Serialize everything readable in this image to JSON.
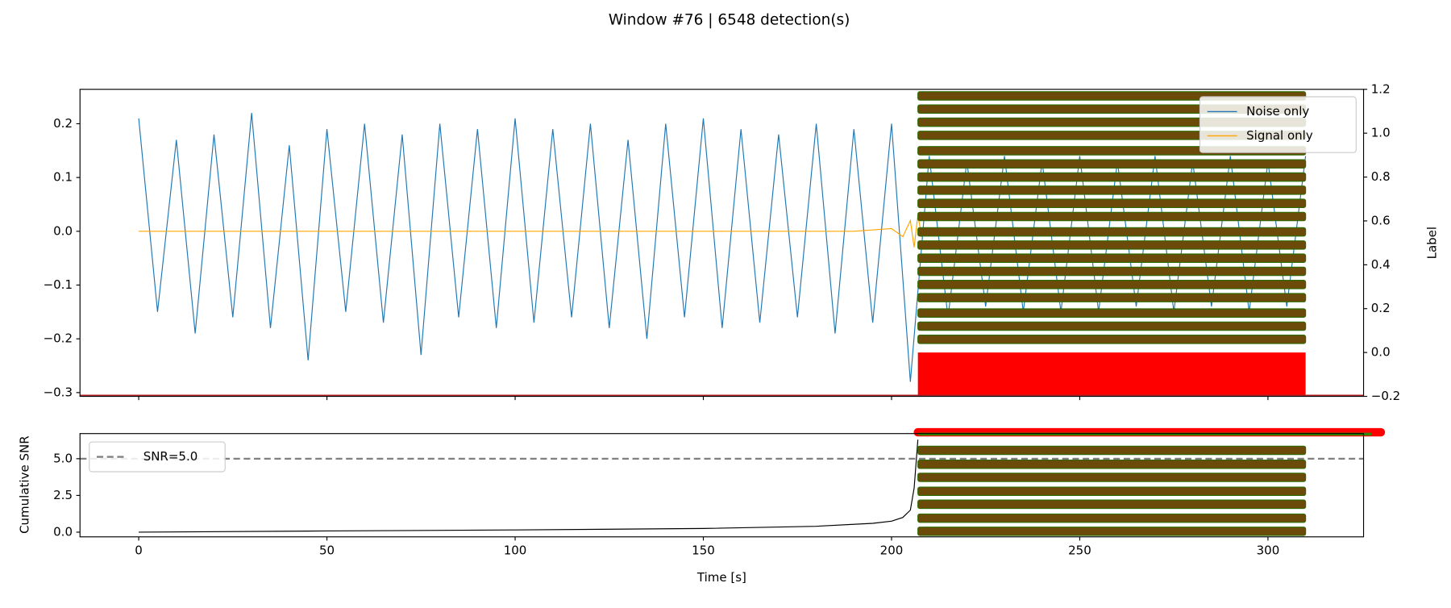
{
  "chart_data": [
    {
      "type": "line",
      "title": "Window #76 | 6548 detection(s)",
      "y2_label": "Label",
      "legend": "upper right",
      "x": [
        0,
        5,
        10,
        15,
        20,
        25,
        30,
        35,
        40,
        45,
        50,
        55,
        60,
        65,
        70,
        75,
        80,
        85,
        90,
        95,
        100,
        105,
        110,
        115,
        120,
        125,
        130,
        135,
        140,
        145,
        150,
        155,
        160,
        165,
        170,
        175,
        180,
        185,
        190,
        195,
        200,
        205,
        210,
        215,
        220,
        225,
        230,
        235,
        240,
        245,
        250,
        255,
        260,
        265,
        270,
        275,
        280,
        285,
        290,
        295,
        300,
        305,
        310
      ],
      "series": [
        {
          "name": "Noise only",
          "color": "#1f77b4",
          "values": [
            0.21,
            -0.15,
            0.17,
            -0.19,
            0.18,
            -0.16,
            0.22,
            -0.18,
            0.16,
            -0.24,
            0.19,
            -0.15,
            0.2,
            -0.17,
            0.18,
            -0.23,
            0.2,
            -0.16,
            0.19,
            -0.18,
            0.21,
            -0.17,
            0.19,
            -0.16,
            0.2,
            -0.18,
            0.17,
            -0.2,
            0.2,
            -0.16,
            0.21,
            -0.18,
            0.19,
            -0.17,
            0.18,
            -0.16,
            0.2,
            -0.19,
            0.19,
            -0.17,
            0.2,
            -0.28,
            0.14,
            -0.16,
            0.13,
            -0.14,
            0.14,
            -0.15,
            0.13,
            -0.15,
            0.14,
            -0.15,
            0.13,
            -0.14,
            0.14,
            -0.15,
            0.13,
            -0.14,
            0.14,
            -0.15,
            0.13,
            -0.14,
            0.14
          ]
        },
        {
          "name": "Signal only",
          "color": "#ffa500",
          "x": [
            0,
            100,
            190,
            200,
            203,
            205,
            206,
            207,
            208,
            210
          ],
          "values": [
            0,
            0,
            0,
            0.005,
            -0.01,
            0.02,
            -0.03,
            0.03,
            -0.01,
            0
          ]
        }
      ],
      "detection_start": 207,
      "detection_end": 310,
      "label_levels": [
        1.17,
        1.11,
        1.05,
        0.99,
        0.92,
        0.86,
        0.8,
        0.74,
        0.68,
        0.62,
        0.55,
        0.49,
        0.43,
        0.37,
        0.31,
        0.25,
        0.18,
        0.12,
        0.06
      ],
      "label_band": [
        -0.2,
        0.0
      ],
      "xlim": [
        -15.6,
        325.4
      ],
      "ylim": [
        -0.307,
        0.264
      ],
      "yticks": [
        {
          "value": -0.3,
          "label": "−0.3"
        },
        {
          "value": -0.2,
          "label": "−0.2"
        },
        {
          "value": -0.1,
          "label": "−0.1"
        },
        {
          "value": 0,
          "label": "0.0"
        },
        0.1,
        0.2
      ],
      "y2lim": [
        -0.2,
        1.2
      ],
      "y2ticks": [
        {
          "value": -0.2,
          "label": "−0.2"
        },
        {
          "value": 0,
          "label": "0.0"
        },
        0.2,
        0.4,
        0.6,
        0.8,
        {
          "value": 1,
          "label": "1.0"
        },
        1.2
      ]
    },
    {
      "type": "line",
      "x_label": "Time [s]",
      "y_label": "Cumulative SNR",
      "legend": "upper left",
      "x": [
        0,
        50,
        100,
        150,
        180,
        195,
        200,
        203,
        205,
        206,
        207
      ],
      "series": [
        {
          "color": "#000000",
          "values": [
            0,
            0.08,
            0.15,
            0.25,
            0.4,
            0.6,
            0.75,
            1.0,
            1.5,
            3.0,
            6.3
          ]
        }
      ],
      "threshold": {
        "name": "SNR=5.0",
        "value": 5.0,
        "color": "#808080"
      },
      "detection_start": 207,
      "detection_end": 310,
      "snr_levels": [
        5.57,
        4.62,
        3.73,
        2.78,
        1.9,
        0.95,
        0.06
      ],
      "marker_snr": 6.8,
      "marker_end": 330,
      "xlim": [
        -15.6,
        325.4
      ],
      "xticks": [
        0,
        50,
        100,
        150,
        200,
        250,
        300
      ],
      "ylim": [
        -0.32,
        6.71
      ],
      "yticks": [
        {
          "value": 0,
          "label": "0.0"
        },
        {
          "value": 2.5,
          "label": "2.5"
        },
        {
          "value": 5,
          "label": "5.0"
        }
      ]
    }
  ]
}
